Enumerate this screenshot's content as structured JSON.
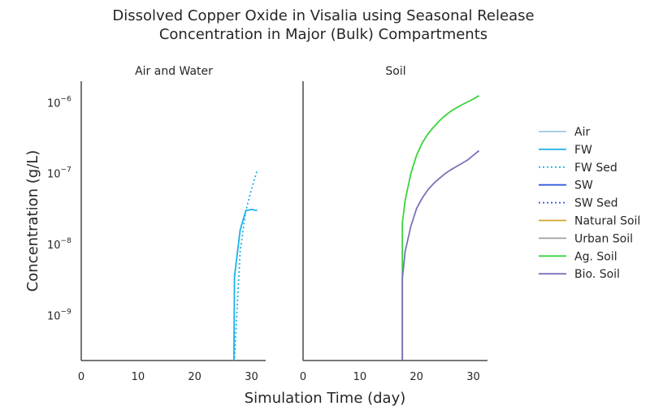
{
  "chart_data": {
    "type": "line",
    "title_line1": "Dissolved Copper Oxide in Visalia using Seasonal Release",
    "title_line2": "Concentration in Major (Bulk) Compartments",
    "xlabel": "Simulation Time (day)",
    "ylabel": "Concentration (g/L)",
    "yscale": "log",
    "ylim": [
      2.3e-10,
      2e-06
    ],
    "xlim": [
      0,
      32.5
    ],
    "xticks": [
      "0",
      "10",
      "20",
      "30"
    ],
    "xtick_values": [
      0,
      10,
      20,
      30
    ],
    "yticks": [
      {
        "base": "10",
        "exp": "−6",
        "value": 1e-06
      },
      {
        "base": "10",
        "exp": "−7",
        "value": 1e-07
      },
      {
        "base": "10",
        "exp": "−8",
        "value": 1e-08
      },
      {
        "base": "10",
        "exp": "−9",
        "value": 1e-09
      }
    ],
    "grid": false,
    "legend_position": "right",
    "panels": [
      {
        "title": "Air and Water",
        "series": [
          {
            "name": "FW",
            "color": "#1ab2ec",
            "dash": "solid",
            "x": [
              26.9,
              27.0,
              28.0,
              29.0,
              30.0,
              31.0
            ],
            "y": [
              2.3e-10,
              3.5e-09,
              1.6e-08,
              3e-08,
              3.1e-08,
              3e-08
            ]
          },
          {
            "name": "FW Sed",
            "color": "#1ab2ec",
            "dash": "dotted",
            "x": [
              27.0,
              28.0,
              29.0,
              30.0,
              31.0
            ],
            "y": [
              2.5e-10,
              8e-09,
              3e-08,
              6e-08,
              1.1e-07
            ]
          }
        ]
      },
      {
        "title": "Soil",
        "series": [
          {
            "name": "Ag. Soil",
            "color": "#3bd33b",
            "dash": "solid",
            "x": [
              17.5,
              17.5,
              18.0,
              19.0,
              20.0,
              21.0,
              22.0,
              23.0,
              24.0,
              25.0,
              26.0,
              27.0,
              28.0,
              29.0,
              30.0,
              31.0
            ],
            "y": [
              2.3e-10,
              2e-08,
              4.2e-08,
              1e-07,
              1.8e-07,
              2.7e-07,
              3.6e-07,
              4.5e-07,
              5.5e-07,
              6.5e-07,
              7.5e-07,
              8.4e-07,
              9.3e-07,
              1.02e-06,
              1.12e-06,
              1.25e-06
            ]
          },
          {
            "name": "Bio. Soil",
            "color": "#7b72b8",
            "dash": "solid",
            "x": [
              17.5,
              17.5,
              18.0,
              19.0,
              20.0,
              21.0,
              22.0,
              23.0,
              24.0,
              25.0,
              26.0,
              27.0,
              28.0,
              29.0,
              30.0,
              31.0
            ],
            "y": [
              2.3e-10,
              3.3e-09,
              8e-09,
              1.8e-08,
              3.2e-08,
              4.5e-08,
              5.9e-08,
              7.2e-08,
              8.5e-08,
              9.9e-08,
              1.12e-07,
              1.25e-07,
              1.39e-07,
              1.55e-07,
              1.8e-07,
              2.1e-07
            ]
          }
        ]
      }
    ],
    "legend": [
      {
        "name": "Air",
        "color": "#9ec9df",
        "dash": "solid"
      },
      {
        "name": "FW",
        "color": "#1ab2ec",
        "dash": "solid"
      },
      {
        "name": "FW Sed",
        "color": "#1ab2ec",
        "dash": "dotted"
      },
      {
        "name": "SW",
        "color": "#3459d9",
        "dash": "solid"
      },
      {
        "name": "SW Sed",
        "color": "#3459d9",
        "dash": "dotted"
      },
      {
        "name": "Natural Soil",
        "color": "#d4a52c",
        "dash": "solid"
      },
      {
        "name": "Urban Soil",
        "color": "#a0a0a0",
        "dash": "solid"
      },
      {
        "name": "Ag. Soil",
        "color": "#3bd33b",
        "dash": "solid"
      },
      {
        "name": "Bio. Soil",
        "color": "#7b72b8",
        "dash": "solid"
      }
    ]
  }
}
